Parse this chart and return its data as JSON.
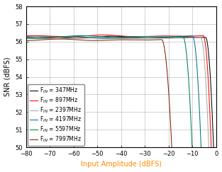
{
  "title": "",
  "xlabel": "Input Amplitude (dBFS)",
  "ylabel": "SNR (dBFS)",
  "xlim": [
    -80,
    0
  ],
  "ylim": [
    50,
    58
  ],
  "xticks": [
    -80,
    -70,
    -60,
    -50,
    -40,
    -30,
    -20,
    -10,
    0
  ],
  "yticks": [
    50,
    51,
    52,
    53,
    54,
    55,
    56,
    57,
    58
  ],
  "series": [
    {
      "label": "F$_{IN}$ = 347MHz",
      "color": "#000000",
      "flat_level": 56.25,
      "noise_amp": 0.06,
      "knee": -4.5,
      "steepness": 0.55
    },
    {
      "label": "F$_{IN}$ = 897MHz",
      "color": "#ff0000",
      "flat_level": 56.32,
      "noise_amp": 0.06,
      "knee": -5.5,
      "steepness": 0.55
    },
    {
      "label": "F$_{IN}$ = 2397MHz",
      "color": "#aaaaaa",
      "flat_level": 56.2,
      "noise_amp": 0.05,
      "knee": -6.5,
      "steepness": 0.55
    },
    {
      "label": "F$_{IN}$ = 4197MHz",
      "color": "#007090",
      "flat_level": 56.28,
      "noise_amp": 0.06,
      "knee": -10.0,
      "steepness": 0.48
    },
    {
      "label": "F$_{IN}$ = 5597MHz",
      "color": "#008050",
      "flat_level": 56.22,
      "noise_amp": 0.06,
      "knee": -14.0,
      "steepness": 0.42
    },
    {
      "label": "F$_{IN}$ = 7997MHz",
      "color": "#8b2000",
      "flat_level": 56.1,
      "noise_amp": 0.05,
      "knee": -23.0,
      "steepness": 0.33
    }
  ],
  "legend_loc": "lower left",
  "legend_fontsize": 5.5,
  "tick_fontsize": 6,
  "label_fontsize": 7,
  "grid": true,
  "background_color": "#ffffff",
  "xlabel_color": "#ff8c00",
  "ylabel_color": "#000000"
}
